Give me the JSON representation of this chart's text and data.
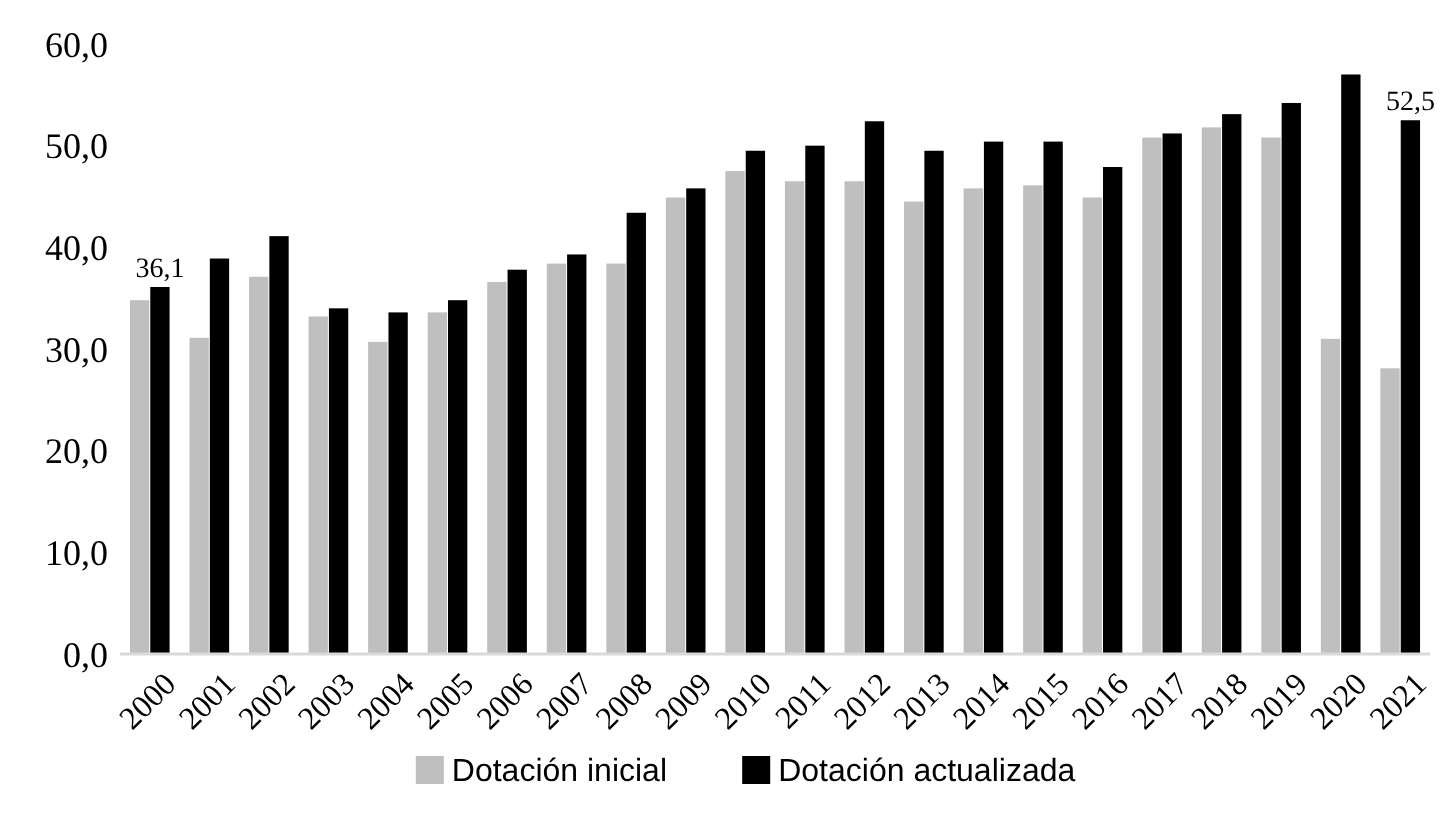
{
  "chart_data": {
    "type": "bar",
    "categories": [
      "2000",
      "2001",
      "2002",
      "2003",
      "2004",
      "2005",
      "2006",
      "2007",
      "2008",
      "2009",
      "2010",
      "2011",
      "2012",
      "2013",
      "2014",
      "2015",
      "2016",
      "2017",
      "2018",
      "2019",
      "2020",
      "2021"
    ],
    "series": [
      {
        "name": "Dotación inicial",
        "color": "#bfbfbf",
        "values": [
          34.8,
          31.1,
          37.1,
          33.2,
          30.7,
          33.6,
          36.6,
          38.4,
          38.4,
          44.9,
          47.5,
          46.5,
          46.5,
          44.5,
          45.8,
          46.1,
          44.9,
          50.8,
          51.8,
          50.8,
          31.0,
          28.1
        ]
      },
      {
        "name": "Dotación actualizada",
        "color": "#000000",
        "values": [
          36.1,
          38.9,
          41.1,
          34.0,
          33.6,
          34.8,
          37.8,
          39.3,
          43.4,
          45.8,
          49.5,
          50.0,
          52.4,
          49.5,
          50.4,
          50.4,
          47.9,
          51.2,
          53.1,
          54.2,
          57.0,
          52.5
        ],
        "value_labels": [
          "36,1",
          null,
          null,
          null,
          null,
          null,
          null,
          null,
          null,
          null,
          null,
          null,
          null,
          null,
          null,
          null,
          null,
          null,
          null,
          null,
          null,
          "52,5"
        ]
      }
    ],
    "ylim": [
      0,
      60
    ],
    "yticks": [
      {
        "value": 0,
        "label": "0,0"
      },
      {
        "value": 10,
        "label": "10,0"
      },
      {
        "value": 20,
        "label": "20,0"
      },
      {
        "value": 30,
        "label": "30,0"
      },
      {
        "value": 40,
        "label": "40,0"
      },
      {
        "value": 50,
        "label": "50,0"
      },
      {
        "value": 60,
        "label": "60,0"
      }
    ],
    "grid": false,
    "legend": "bottom"
  }
}
